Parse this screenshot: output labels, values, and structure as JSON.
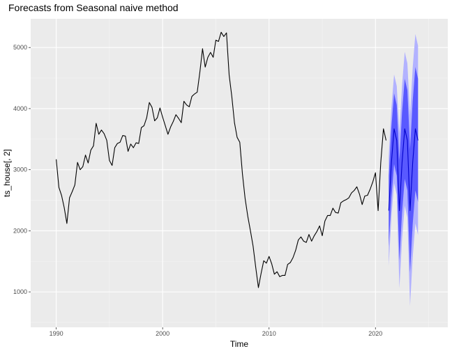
{
  "chart_data": {
    "type": "line",
    "title": "Forecasts from Seasonal naive method",
    "xlabel": "Time",
    "ylabel": "ts_house[, 2]",
    "xlim": [
      1987.6,
      2026.8
    ],
    "ylim": [
      420,
      5470
    ],
    "x_ticks": [
      1990,
      2000,
      2010,
      2020
    ],
    "x_tick_labels": [
      "1990",
      "2000",
      "2010",
      "2020"
    ],
    "y_ticks": [
      1000,
      2000,
      3000,
      4000,
      5000
    ],
    "y_tick_labels": [
      "1000",
      "2000",
      "3000",
      "4000",
      "5000"
    ],
    "grid": true,
    "series": [
      {
        "role": "history",
        "x": [
          1990.0,
          1990.25,
          1990.5,
          1990.75,
          1991.0,
          1991.25,
          1991.5,
          1991.75,
          1992.0,
          1992.25,
          1992.5,
          1992.75,
          1993.0,
          1993.25,
          1993.5,
          1993.75,
          1994.0,
          1994.25,
          1994.5,
          1994.75,
          1995.0,
          1995.25,
          1995.5,
          1995.75,
          1996.0,
          1996.25,
          1996.5,
          1996.75,
          1997.0,
          1997.25,
          1997.5,
          1997.75,
          1998.0,
          1998.25,
          1998.5,
          1998.75,
          1999.0,
          1999.25,
          1999.5,
          1999.75,
          2000.0,
          2000.25,
          2000.5,
          2000.75,
          2001.0,
          2001.25,
          2001.5,
          2001.75,
          2002.0,
          2002.25,
          2002.5,
          2002.75,
          2003.0,
          2003.25,
          2003.5,
          2003.75,
          2004.0,
          2004.25,
          2004.5,
          2004.75,
          2005.0,
          2005.25,
          2005.5,
          2005.75,
          2006.0,
          2006.25,
          2006.5,
          2006.75,
          2007.0,
          2007.25,
          2007.5,
          2007.75,
          2008.0,
          2008.25,
          2008.5,
          2008.75,
          2009.0,
          2009.25,
          2009.5,
          2009.75,
          2010.0,
          2010.25,
          2010.5,
          2010.75,
          2011.0,
          2011.25,
          2011.5,
          2011.75,
          2012.0,
          2012.25,
          2012.5,
          2012.75,
          2013.0,
          2013.25,
          2013.5,
          2013.75,
          2014.0,
          2014.25,
          2014.5,
          2014.75,
          2015.0,
          2015.25,
          2015.5,
          2015.75,
          2016.0,
          2016.25,
          2016.5,
          2016.75,
          2017.0,
          2017.25,
          2017.5,
          2017.75,
          2018.0,
          2018.25,
          2018.5,
          2018.75,
          2019.0,
          2019.25,
          2019.5,
          2019.75,
          2020.0,
          2020.25,
          2020.5,
          2020.75,
          2021.0
        ],
        "values": [
          3170,
          2710,
          2580,
          2380,
          2120,
          2540,
          2640,
          2750,
          3120,
          3000,
          3050,
          3240,
          3110,
          3320,
          3390,
          3760,
          3580,
          3650,
          3590,
          3480,
          3150,
          3070,
          3360,
          3430,
          3450,
          3560,
          3550,
          3300,
          3420,
          3360,
          3440,
          3430,
          3690,
          3720,
          3850,
          4100,
          4020,
          3800,
          3850,
          4010,
          3860,
          3720,
          3580,
          3700,
          3790,
          3900,
          3840,
          3770,
          4120,
          4060,
          4030,
          4200,
          4240,
          4270,
          4600,
          4980,
          4680,
          4840,
          4920,
          4840,
          5120,
          5100,
          5250,
          5180,
          5240,
          4550,
          4200,
          3770,
          3530,
          3450,
          2930,
          2530,
          2240,
          2000,
          1750,
          1400,
          1070,
          1300,
          1510,
          1470,
          1580,
          1460,
          1290,
          1330,
          1250,
          1270,
          1270,
          1450,
          1480,
          1560,
          1680,
          1850,
          1900,
          1830,
          1810,
          1940,
          1830,
          1920,
          1990,
          2080,
          1920,
          2160,
          2250,
          2250,
          2370,
          2300,
          2290,
          2460,
          2490,
          2510,
          2540,
          2620,
          2660,
          2720,
          2600,
          2430,
          2570,
          2580,
          2680,
          2800,
          2950,
          2330,
          3120,
          3670,
          3480
        ]
      },
      {
        "role": "forecast",
        "x": [
          2021.25,
          2021.5,
          2021.75,
          2022.0,
          2022.25,
          2022.5,
          2022.75,
          2023.0,
          2023.25,
          2023.5,
          2023.75,
          2024.0
        ],
        "values": [
          2330,
          3120,
          3670,
          3480,
          2330,
          3120,
          3670,
          3480,
          2330,
          3120,
          3670,
          3480
        ],
        "lower80": [
          1750,
          2540,
          3090,
          2900,
          1510,
          2300,
          2850,
          2660,
          1320,
          2110,
          2660,
          2470
        ],
        "upper80": [
          2910,
          3700,
          4250,
          4060,
          3150,
          3940,
          4490,
          4300,
          3340,
          4130,
          4680,
          4490
        ],
        "lower95": [
          1430,
          2230,
          2780,
          2590,
          1060,
          1860,
          2410,
          2220,
          770,
          1570,
          2120,
          1930
        ],
        "upper95": [
          3230,
          4010,
          4560,
          4370,
          3600,
          4380,
          4930,
          4740,
          3890,
          4670,
          5220,
          5030
        ]
      }
    ],
    "colors": {
      "panel_background": "#ebebeb",
      "grid_major": "#ffffff",
      "grid_minor": "#f5f5f5",
      "history_line": "#000000",
      "forecast_line": "#0000cc",
      "band80": "#5959ff",
      "band95": "#b2b2ff"
    }
  }
}
